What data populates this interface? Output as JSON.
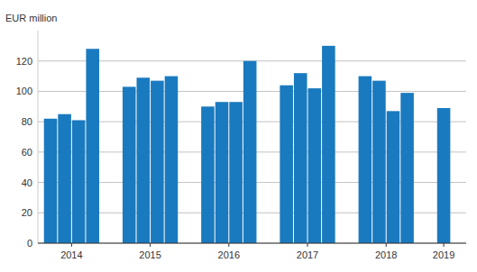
{
  "chart_data": {
    "type": "bar",
    "y_label": "EUR million",
    "categories": [
      "2014",
      "2015",
      "2016",
      "2017",
      "2018",
      "2019"
    ],
    "series": [
      {
        "values": [
          82,
          103,
          90,
          104,
          110,
          89
        ]
      },
      {
        "values": [
          85,
          109,
          93,
          112,
          107,
          null
        ]
      },
      {
        "values": [
          81,
          107,
          93,
          102,
          87,
          null
        ]
      },
      {
        "values": [
          128,
          110,
          120,
          130,
          99,
          null
        ]
      }
    ],
    "color": "#1a7abf",
    "ylim": [
      0,
      140
    ],
    "yticks": [
      0,
      20,
      40,
      60,
      80,
      100,
      120
    ],
    "grid": true
  }
}
